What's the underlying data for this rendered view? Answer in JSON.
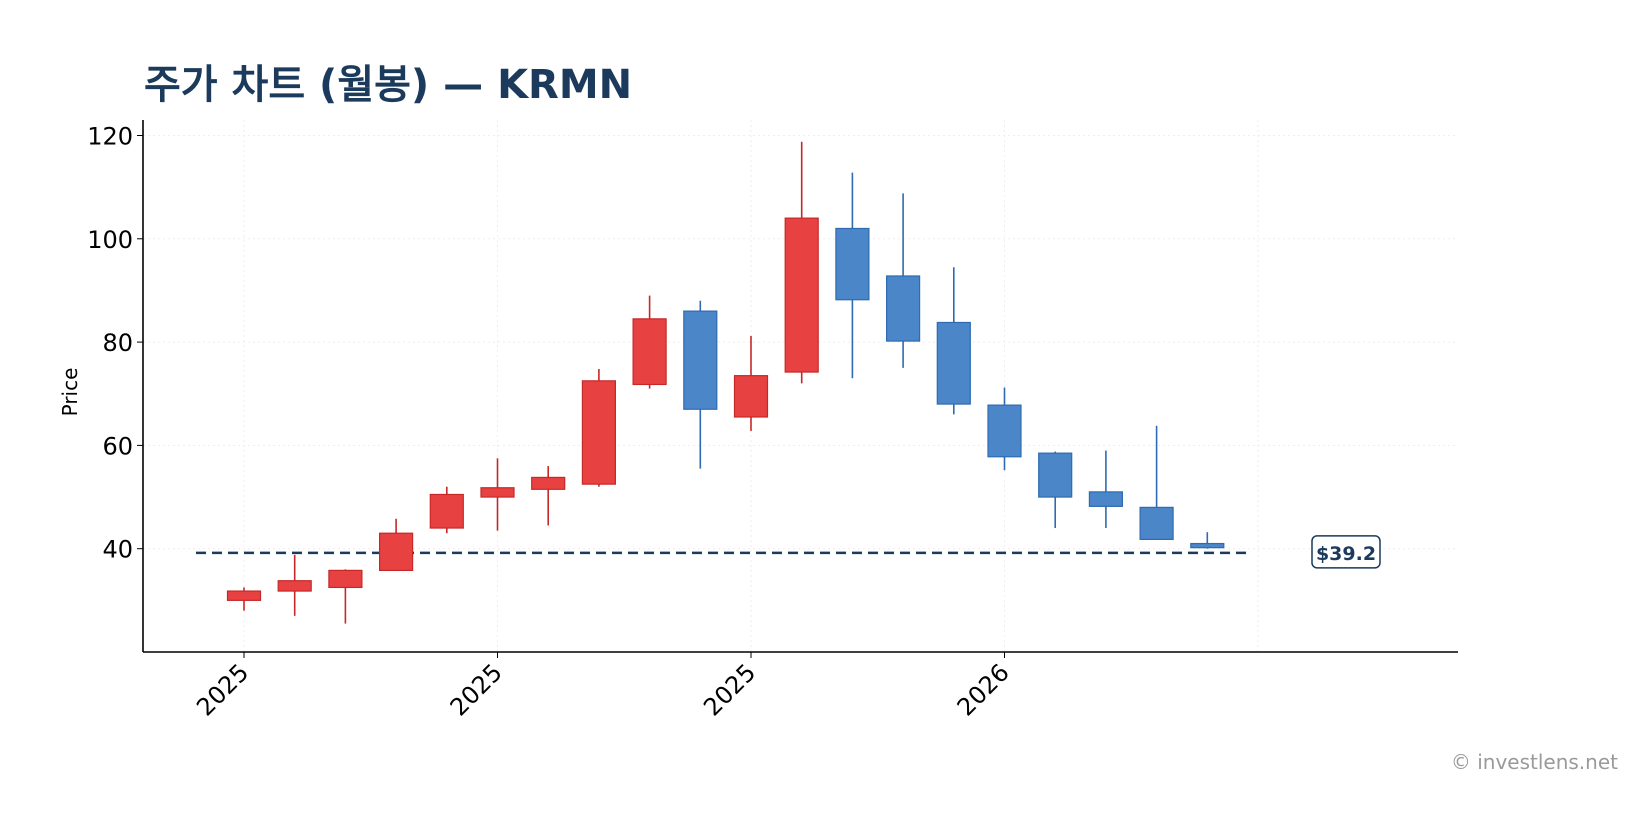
{
  "chart_data": {
    "type": "candlestick",
    "title": "주가 차트 (월봉) — KRMN",
    "xlabel": "",
    "ylabel": "Price",
    "ylim": [
      20,
      123
    ],
    "yticks": [
      40,
      60,
      80,
      100,
      120
    ],
    "xtick_labels": [
      "2025",
      "2025",
      "2025",
      "2026"
    ],
    "grid": true,
    "up_color": "#e84142",
    "down_color": "#4a86c8",
    "reference_line": {
      "value": 39.2,
      "label": "$39.2",
      "color": "#1b3a5c",
      "style": "dashed"
    },
    "candles": [
      {
        "open": 30.0,
        "high": 32.5,
        "low": 28.0,
        "close": 31.8
      },
      {
        "open": 31.8,
        "high": 38.8,
        "low": 27.0,
        "close": 33.8
      },
      {
        "open": 32.5,
        "high": 36.0,
        "low": 25.5,
        "close": 35.8
      },
      {
        "open": 35.8,
        "high": 45.8,
        "low": 35.8,
        "close": 43.0
      },
      {
        "open": 44.0,
        "high": 52.0,
        "low": 43.0,
        "close": 50.5
      },
      {
        "open": 50.0,
        "high": 57.5,
        "low": 43.5,
        "close": 51.8
      },
      {
        "open": 51.5,
        "high": 56.0,
        "low": 44.5,
        "close": 53.8
      },
      {
        "open": 52.5,
        "high": 74.8,
        "low": 52.0,
        "close": 72.5
      },
      {
        "open": 71.8,
        "high": 89.0,
        "low": 71.0,
        "close": 84.5
      },
      {
        "open": 86.0,
        "high": 88.0,
        "low": 55.5,
        "close": 67.0
      },
      {
        "open": 65.5,
        "high": 81.2,
        "low": 62.8,
        "close": 73.5
      },
      {
        "open": 74.2,
        "high": 118.8,
        "low": 72.0,
        "close": 104.0
      },
      {
        "open": 102.0,
        "high": 112.8,
        "low": 73.0,
        "close": 88.2
      },
      {
        "open": 92.8,
        "high": 108.8,
        "low": 75.0,
        "close": 80.2
      },
      {
        "open": 83.8,
        "high": 94.5,
        "low": 66.0,
        "close": 68.0
      },
      {
        "open": 67.8,
        "high": 71.2,
        "low": 55.2,
        "close": 57.8
      },
      {
        "open": 58.5,
        "high": 58.8,
        "low": 44.0,
        "close": 50.0
      },
      {
        "open": 51.0,
        "high": 59.0,
        "low": 44.0,
        "close": 48.2
      },
      {
        "open": 48.0,
        "high": 63.8,
        "low": 41.8,
        "close": 41.8
      },
      {
        "open": 41.0,
        "high": 43.2,
        "low": 40.0,
        "close": 40.2
      }
    ]
  },
  "watermark": "© investlens.net"
}
